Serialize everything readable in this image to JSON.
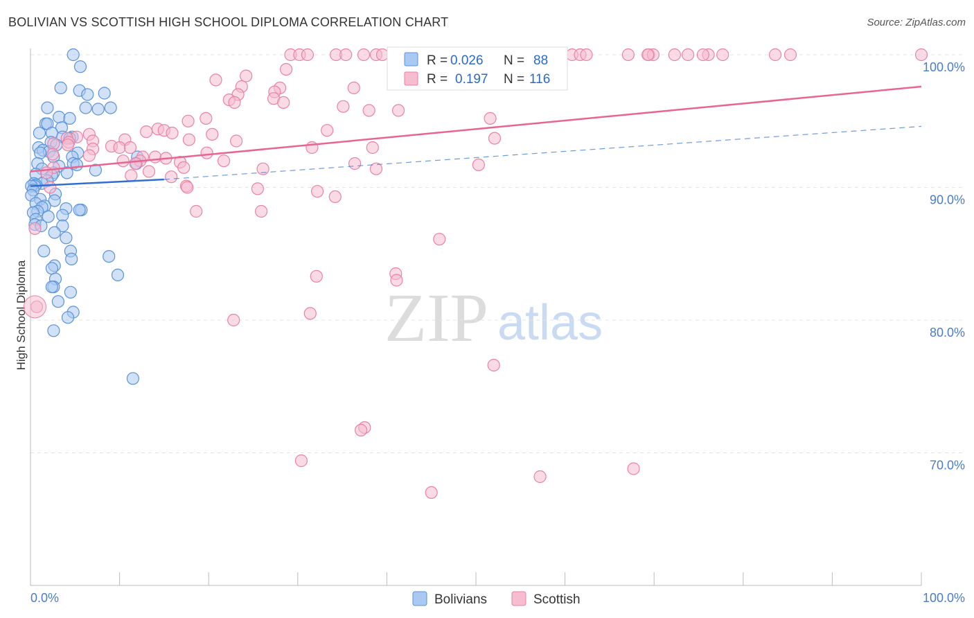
{
  "header": {
    "title": "BOLIVIAN VS SCOTTISH HIGH SCHOOL DIPLOMA CORRELATION CHART",
    "source": "Source: ZipAtlas.com"
  },
  "watermark": {
    "zip": "ZIP",
    "atlas": "atlas"
  },
  "colors": {
    "blue_fill": "#a9c8f2",
    "blue_stroke": "#5b93d8",
    "blue_line": "#2e6fd1",
    "pink_fill": "#f6bccf",
    "pink_stroke": "#e882a6",
    "pink_line": "#e8658f",
    "axis_text": "#4a7cc7",
    "grid": "#e3e3e3"
  },
  "legend_box": {
    "rows": [
      {
        "r_label": "R =",
        "r_value": "0.026",
        "n_label": "N =",
        "n_value": "88"
      },
      {
        "r_label": "R =",
        "r_value": "0.197",
        "n_label": "N =",
        "n_value": "116"
      }
    ]
  },
  "bottom_legend": {
    "items": [
      "Bolivians",
      "Scottish"
    ]
  },
  "chart_data": {
    "type": "scatter",
    "title": "BOLIVIAN VS SCOTTISH HIGH SCHOOL DIPLOMA CORRELATION CHART",
    "xlabel": "",
    "ylabel": "High School Diploma",
    "xlim": [
      0,
      100
    ],
    "ylim": [
      60,
      101
    ],
    "x_tick_labels": [
      "0.0%",
      "100.0%"
    ],
    "y_ticks": [
      70,
      80,
      90,
      100
    ],
    "y_tick_labels": [
      "70.0%",
      "80.0%",
      "90.0%",
      "100.0%"
    ],
    "grid": true,
    "series": [
      {
        "name": "Bolivians",
        "r": 0.026,
        "n": 88,
        "trend_solid": [
          [
            0,
            90.1
          ],
          [
            15,
            90.6
          ]
        ],
        "trend_dashed": [
          [
            15,
            90.6
          ],
          [
            100,
            94.6
          ]
        ],
        "points": [
          [
            4.8,
            100
          ],
          [
            5.6,
            99.1
          ],
          [
            3.4,
            97.5
          ],
          [
            5.5,
            97.3
          ],
          [
            8.3,
            97.1
          ],
          [
            6.4,
            97.0
          ],
          [
            6.2,
            96.0
          ],
          [
            1.9,
            96.0
          ],
          [
            7.6,
            95.9
          ],
          [
            9.0,
            96.0
          ],
          [
            3.2,
            95.3
          ],
          [
            4.4,
            95.2
          ],
          [
            1.7,
            94.8
          ],
          [
            1.9,
            94.8
          ],
          [
            3.5,
            94.5
          ],
          [
            2.4,
            94.1
          ],
          [
            1.0,
            94.1
          ],
          [
            3.6,
            93.8
          ],
          [
            4.7,
            93.8
          ],
          [
            4.4,
            93.7
          ],
          [
            2.3,
            93.4
          ],
          [
            2.9,
            93.2
          ],
          [
            0.9,
            93.0
          ],
          [
            1.4,
            92.8
          ],
          [
            2.1,
            92.7
          ],
          [
            1.1,
            92.6
          ],
          [
            5.3,
            92.6
          ],
          [
            12.0,
            92.3
          ],
          [
            2.6,
            92.3
          ],
          [
            4.7,
            92.3
          ],
          [
            4.8,
            91.8
          ],
          [
            11.9,
            91.8
          ],
          [
            0.8,
            91.8
          ],
          [
            5.2,
            91.7
          ],
          [
            3.2,
            91.6
          ],
          [
            1.3,
            91.4
          ],
          [
            7.3,
            91.3
          ],
          [
            4.1,
            91.1
          ],
          [
            2.6,
            91.1
          ],
          [
            0.6,
            91.0
          ],
          [
            2.4,
            90.9
          ],
          [
            1.9,
            90.5
          ],
          [
            0.4,
            90.3
          ],
          [
            1.3,
            90.3
          ],
          [
            0.6,
            90.2
          ],
          [
            0.5,
            90.1
          ],
          [
            0.1,
            90.1
          ],
          [
            0.3,
            89.8
          ],
          [
            2.8,
            89.5
          ],
          [
            0.1,
            89.4
          ],
          [
            1.1,
            89.1
          ],
          [
            2.7,
            89.0
          ],
          [
            0.6,
            88.8
          ],
          [
            1.6,
            88.6
          ],
          [
            1.3,
            88.5
          ],
          [
            4.0,
            88.4
          ],
          [
            5.7,
            88.3
          ],
          [
            5.5,
            88.3
          ],
          [
            0.8,
            88.2
          ],
          [
            0.3,
            88.1
          ],
          [
            3.6,
            87.9
          ],
          [
            2.0,
            87.8
          ],
          [
            0.6,
            87.6
          ],
          [
            0.5,
            87.2
          ],
          [
            1.2,
            87.1
          ],
          [
            3.6,
            87.1
          ],
          [
            2.7,
            86.6
          ],
          [
            4.0,
            86.2
          ],
          [
            4.5,
            85.2
          ],
          [
            1.5,
            85.2
          ],
          [
            4.6,
            84.6
          ],
          [
            8.8,
            84.8
          ],
          [
            2.7,
            84.1
          ],
          [
            2.4,
            83.9
          ],
          [
            9.8,
            83.4
          ],
          [
            2.8,
            83.1
          ],
          [
            2.6,
            82.5
          ],
          [
            2.4,
            82.5
          ],
          [
            4.5,
            82.1
          ],
          [
            3.1,
            81.4
          ],
          [
            4.8,
            80.6
          ],
          [
            4.2,
            80.2
          ],
          [
            2.6,
            79.2
          ],
          [
            11.5,
            75.6
          ]
        ]
      },
      {
        "name": "Scottish",
        "r": 0.197,
        "n": 116,
        "trend_solid": [
          [
            0,
            91.2
          ],
          [
            100,
            97.6
          ]
        ],
        "points": [
          [
            29.2,
            100
          ],
          [
            30.2,
            100
          ],
          [
            31.1,
            100
          ],
          [
            34.3,
            100
          ],
          [
            35.4,
            100
          ],
          [
            37.4,
            100
          ],
          [
            38.8,
            100
          ],
          [
            39.5,
            100
          ],
          [
            43.3,
            100
          ],
          [
            45.8,
            100
          ],
          [
            48.7,
            100
          ],
          [
            49.7,
            100
          ],
          [
            51.8,
            100
          ],
          [
            53.2,
            100
          ],
          [
            55.4,
            100
          ],
          [
            55.9,
            100
          ],
          [
            59.6,
            100
          ],
          [
            60.8,
            100
          ],
          [
            61.7,
            100
          ],
          [
            62.4,
            100
          ],
          [
            67.1,
            100
          ],
          [
            69.4,
            100
          ],
          [
            69.9,
            100
          ],
          [
            73.8,
            100
          ],
          [
            76.1,
            100
          ],
          [
            69.3,
            100
          ],
          [
            72.3,
            100
          ],
          [
            75.5,
            100
          ],
          [
            77.7,
            100
          ],
          [
            83.6,
            100
          ],
          [
            85.3,
            100
          ],
          [
            100,
            100
          ],
          [
            46.3,
            99.1
          ],
          [
            28.7,
            98.9
          ],
          [
            24.2,
            98.4
          ],
          [
            20.8,
            98.1
          ],
          [
            23.7,
            97.6
          ],
          [
            28.0,
            97.5
          ],
          [
            36.3,
            97.5
          ],
          [
            27.4,
            97.2
          ],
          [
            23.3,
            97.0
          ],
          [
            27.3,
            96.7
          ],
          [
            22.3,
            96.6
          ],
          [
            22.9,
            96.4
          ],
          [
            28.4,
            96.4
          ],
          [
            35.1,
            96.1
          ],
          [
            38.0,
            95.8
          ],
          [
            41.3,
            95.8
          ],
          [
            51.6,
            95.2
          ],
          [
            19.7,
            95.2
          ],
          [
            17.7,
            95.0
          ],
          [
            14.3,
            94.4
          ],
          [
            15.0,
            94.3
          ],
          [
            6.6,
            94.0
          ],
          [
            13.0,
            94.2
          ],
          [
            15.9,
            94.1
          ],
          [
            20.4,
            94.0
          ],
          [
            33.3,
            94.3
          ],
          [
            52.1,
            93.7
          ],
          [
            5.2,
            93.8
          ],
          [
            4.1,
            93.7
          ],
          [
            7.0,
            93.5
          ],
          [
            10.6,
            93.6
          ],
          [
            4.3,
            93.4
          ],
          [
            17.8,
            93.6
          ],
          [
            23.1,
            93.5
          ],
          [
            2.6,
            93.3
          ],
          [
            9.1,
            93.1
          ],
          [
            4.2,
            93.2
          ],
          [
            10.0,
            93.0
          ],
          [
            11.2,
            93.0
          ],
          [
            31.6,
            93.0
          ],
          [
            38.4,
            93.0
          ],
          [
            7.0,
            92.9
          ],
          [
            19.8,
            92.6
          ],
          [
            2.5,
            92.5
          ],
          [
            6.6,
            92.4
          ],
          [
            12.6,
            92.3
          ],
          [
            14.0,
            92.3
          ],
          [
            15.2,
            92.2
          ],
          [
            10.4,
            92.0
          ],
          [
            12.3,
            92.0
          ],
          [
            21.7,
            92.0
          ],
          [
            16.8,
            91.9
          ],
          [
            11.8,
            91.8
          ],
          [
            36.4,
            91.8
          ],
          [
            50.3,
            91.7
          ],
          [
            2.6,
            91.5
          ],
          [
            17.2,
            91.5
          ],
          [
            26.1,
            91.4
          ],
          [
            38.8,
            91.4
          ],
          [
            13.3,
            91.2
          ],
          [
            1.8,
            91.1
          ],
          [
            11.3,
            90.9
          ],
          [
            15.8,
            90.8
          ],
          [
            2.2,
            90.0
          ],
          [
            17.5,
            90.1
          ],
          [
            25.5,
            89.9
          ],
          [
            17.6,
            90.0
          ],
          [
            32.2,
            89.7
          ],
          [
            34.2,
            89.3
          ],
          [
            18.6,
            88.2
          ],
          [
            25.9,
            88.2
          ],
          [
            0.5,
            86.9
          ],
          [
            45.9,
            86.1
          ],
          [
            0.7,
            81.0
          ],
          [
            32.1,
            83.3
          ],
          [
            41.0,
            83.5
          ],
          [
            41.1,
            83.0
          ],
          [
            31.4,
            80.5
          ],
          [
            22.8,
            80.0
          ],
          [
            52.0,
            76.6
          ],
          [
            37.5,
            71.9
          ],
          [
            37.1,
            71.7
          ],
          [
            30.4,
            69.4
          ],
          [
            67.7,
            68.8
          ],
          [
            57.2,
            68.2
          ],
          [
            45.0,
            67.0
          ]
        ]
      }
    ]
  }
}
